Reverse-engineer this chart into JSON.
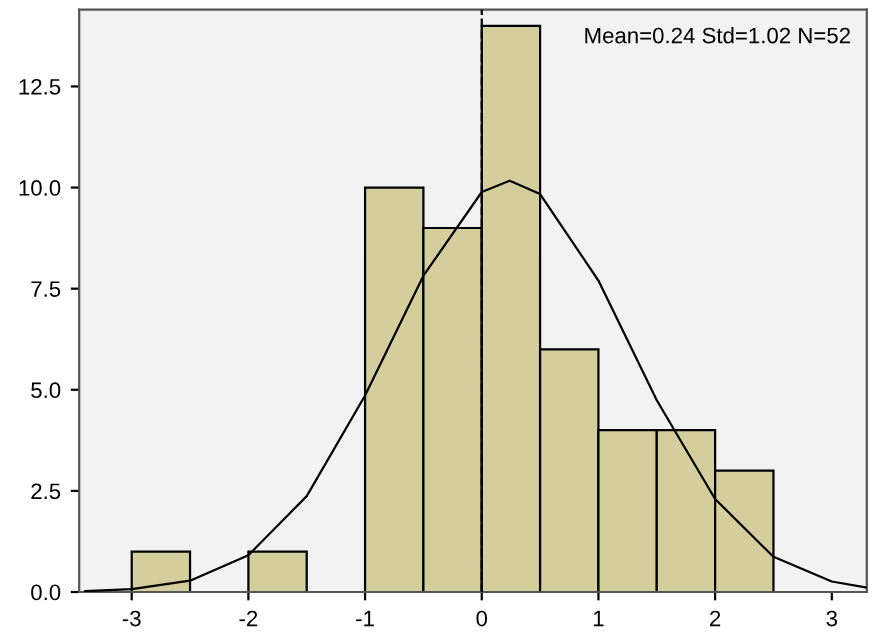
{
  "chart_data": {
    "type": "histogram",
    "bins": [
      -3,
      -2.5,
      -2,
      -1.5,
      -1,
      -0.5,
      0,
      0.5,
      1,
      1.5,
      2,
      2.5
    ],
    "values": [
      1,
      0,
      1,
      0,
      10,
      9,
      14,
      6,
      4,
      4,
      3
    ],
    "color": "#d3ce9b",
    "series": [
      {
        "type": "line",
        "color": "#000000",
        "x": [
          -3.4,
          -3,
          -2.5,
          -2,
          -1.5,
          -1,
          -0.5,
          0,
          0.24,
          0.5,
          1,
          1.5,
          2,
          2.5,
          3,
          3.3
        ],
        "values": [
          0.02,
          0.07,
          0.28,
          0.91,
          2.37,
          4.86,
          7.82,
          9.89,
          10.17,
          9.84,
          7.7,
          4.74,
          2.3,
          0.87,
          0.26,
          0.11
        ]
      }
    ],
    "xlim": [
      -3.45,
      3.3
    ],
    "ylim": [
      0,
      14.4
    ],
    "xticks": [
      -3,
      -2,
      -1,
      0,
      1,
      2,
      3
    ],
    "yticks": [
      {
        "value": 0,
        "label": "0.0"
      },
      {
        "value": 2.5,
        "label": "2.5"
      },
      {
        "value": 5,
        "label": "5.0"
      },
      {
        "value": 7.5,
        "label": "7.5"
      },
      {
        "value": 10,
        "label": "10.0"
      },
      {
        "value": 12.5,
        "label": "12.5"
      }
    ],
    "ref_lines": [
      {
        "axis": "x",
        "value": 0,
        "line_style": "dashed",
        "color": "#000000"
      }
    ],
    "annotations": [
      "Mean=0.24 Std=1.02 N=52"
    ],
    "grid": false,
    "marker": "none",
    "line_style": "solid"
  }
}
